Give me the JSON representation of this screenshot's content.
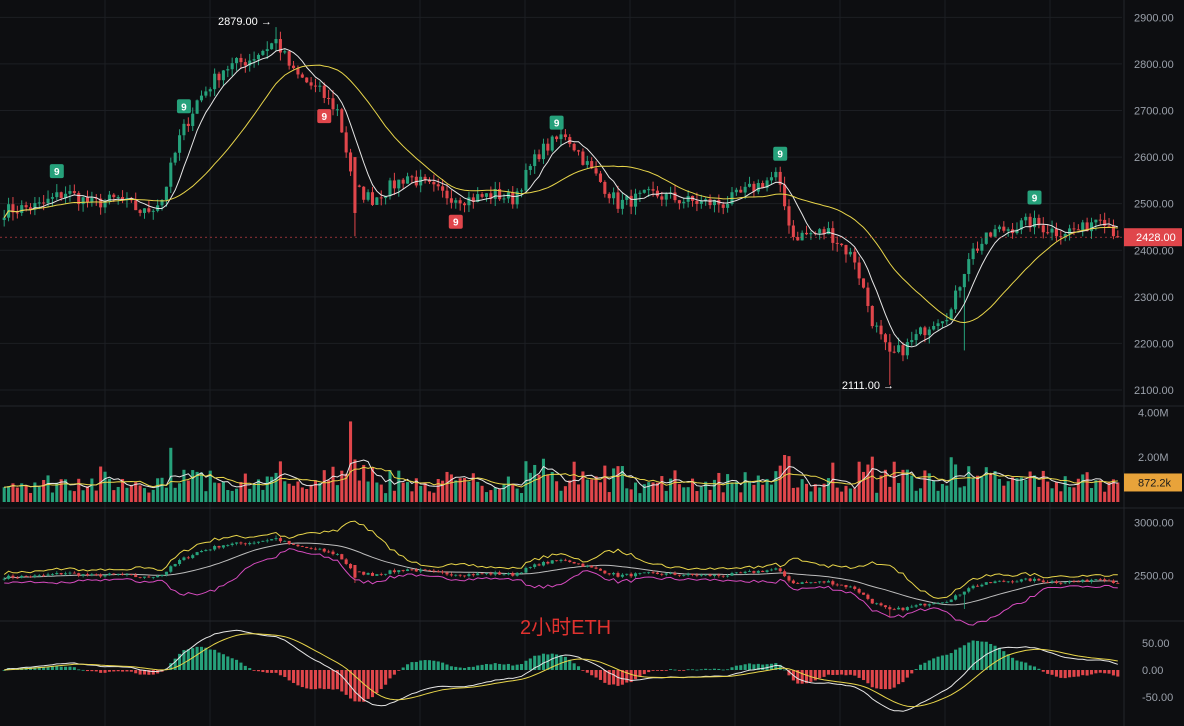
{
  "chart_data": {
    "type": "candlestick",
    "symbol_title": "2小时ETH",
    "colors": {
      "up": "#26a17b",
      "down": "#e0464b",
      "ma_fast": "#e6e6e6",
      "ma_slow": "#e8d54a",
      "ma_pink": "#d64bbf",
      "grid": "#1c1e23",
      "separator": "#24262c",
      "price_tag": "#e0464b",
      "volume_tag": "#e8a33a"
    },
    "price_axis": {
      "min": 2070,
      "max": 2920,
      "ticks": [
        "2900.00",
        "2800.00",
        "2700.00",
        "2600.00",
        "2500.00",
        "2400.00",
        "2300.00",
        "2200.00",
        "2100.00"
      ],
      "tick_values": [
        2900,
        2800,
        2700,
        2600,
        2500,
        2400,
        2300,
        2200,
        2100
      ]
    },
    "current_price": {
      "label": "2428.00",
      "value": 2428
    },
    "high_annotation": {
      "label": "2879.00 →",
      "value": 2879,
      "bar": 62
    },
    "low_annotation": {
      "label": "2111.00 →",
      "value": 2111,
      "bar": 202
    },
    "td_nine_marks": [
      {
        "label": "9",
        "bar": 12,
        "side": "up"
      },
      {
        "label": "9",
        "bar": 41,
        "side": "up"
      },
      {
        "label": "9",
        "bar": 73,
        "side": "down"
      },
      {
        "label": "9",
        "bar": 103,
        "side": "down"
      },
      {
        "label": "9",
        "bar": 126,
        "side": "up"
      },
      {
        "label": "9",
        "bar": 177,
        "side": "up"
      },
      {
        "label": "9",
        "bar": 235,
        "side": "up"
      }
    ],
    "volume_axis": {
      "max": 4200000,
      "ticks": [
        "4.00M",
        "2.00M"
      ],
      "tick_values": [
        4000000,
        2000000
      ],
      "current_label": "872.2k",
      "current_value": 872200
    },
    "indicator_axis": {
      "min": 2100,
      "max": 3100,
      "ticks": [
        "3000.00",
        "2500.00"
      ],
      "tick_values": [
        3000,
        2500
      ]
    },
    "macd_axis": {
      "min": -85,
      "max": 85,
      "ticks": [
        "50.00",
        "0.00",
        "-50.00"
      ],
      "tick_values": [
        50,
        0,
        -50
      ]
    },
    "key_points": [
      [
        0,
        2485
      ],
      [
        8,
        2495
      ],
      [
        14,
        2525
      ],
      [
        20,
        2500
      ],
      [
        26,
        2510
      ],
      [
        32,
        2480
      ],
      [
        36,
        2510
      ],
      [
        40,
        2640
      ],
      [
        44,
        2720
      ],
      [
        50,
        2790
      ],
      [
        56,
        2810
      ],
      [
        62,
        2850
      ],
      [
        66,
        2780
      ],
      [
        72,
        2740
      ],
      [
        76,
        2700
      ],
      [
        80,
        2530
      ],
      [
        84,
        2510
      ],
      [
        92,
        2560
      ],
      [
        100,
        2520
      ],
      [
        106,
        2510
      ],
      [
        112,
        2520
      ],
      [
        116,
        2510
      ],
      [
        122,
        2610
      ],
      [
        128,
        2650
      ],
      [
        134,
        2570
      ],
      [
        140,
        2500
      ],
      [
        148,
        2520
      ],
      [
        156,
        2505
      ],
      [
        164,
        2500
      ],
      [
        172,
        2540
      ],
      [
        176,
        2560
      ],
      [
        180,
        2430
      ],
      [
        188,
        2440
      ],
      [
        194,
        2380
      ],
      [
        198,
        2250
      ],
      [
        202,
        2170
      ],
      [
        206,
        2195
      ],
      [
        212,
        2250
      ],
      [
        216,
        2270
      ],
      [
        220,
        2390
      ],
      [
        226,
        2440
      ],
      [
        234,
        2460
      ],
      [
        240,
        2440
      ],
      [
        246,
        2445
      ],
      [
        250,
        2480
      ],
      [
        254,
        2430
      ]
    ],
    "bar_count": 255,
    "volume_spikes": [
      [
        79,
        3.6
      ],
      [
        80,
        1.9
      ],
      [
        77,
        1.4
      ],
      [
        130,
        1.8
      ],
      [
        139,
        1.5
      ],
      [
        178,
        2.1
      ],
      [
        195,
        1.8
      ],
      [
        203,
        1.8
      ],
      [
        216,
        2.0
      ],
      [
        220,
        1.6
      ],
      [
        90,
        1.4
      ],
      [
        62,
        1.3
      ],
      [
        47,
        1.4
      ]
    ]
  }
}
